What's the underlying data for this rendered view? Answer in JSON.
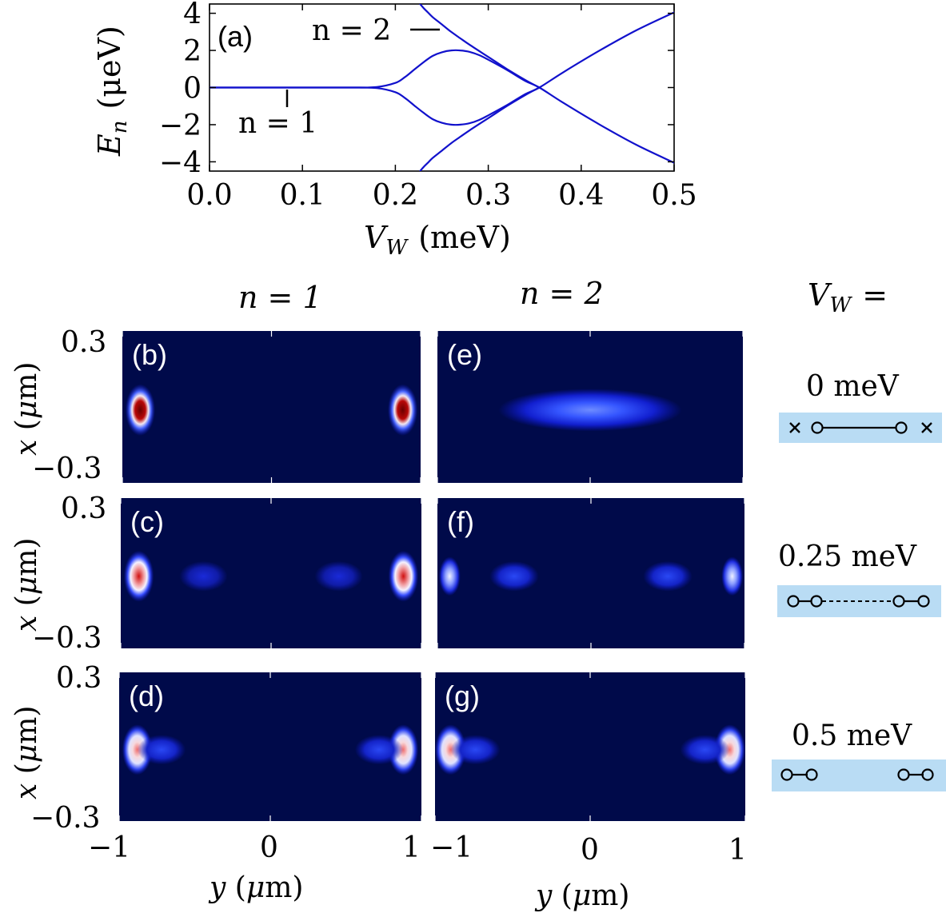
{
  "chart_data": [
    {
      "type": "line",
      "panel_label": "(a)",
      "xlabel_main": "V",
      "xlabel_sub": "W",
      "xlabel_unit": "(meV)",
      "ylabel_main": "E",
      "ylabel_sub": "n",
      "ylabel_unit": "(μeV)",
      "xlim": [
        0.0,
        0.5
      ],
      "ylim": [
        -4.5,
        4.5
      ],
      "xticks": [
        0.0,
        0.1,
        0.2,
        0.3,
        0.4,
        0.5
      ],
      "xtick_labels": [
        "0.0",
        "0.1",
        "0.2",
        "0.3",
        "0.4",
        "0.5"
      ],
      "yticks": [
        4,
        2,
        0,
        -2,
        -4
      ],
      "ytick_labels": [
        "4",
        "2",
        "0",
        "−2",
        "−4"
      ],
      "line_color": "#1111cc",
      "annotations": [
        {
          "text": "n = 2",
          "points_to": [
            0.25,
            3.4
          ]
        },
        {
          "text": "n = 1",
          "points_to": [
            0.085,
            0.0
          ]
        }
      ],
      "series": [
        {
          "name": "n=1 (+)",
          "x": [
            0.0,
            0.05,
            0.1,
            0.15,
            0.18,
            0.2,
            0.21,
            0.22,
            0.23,
            0.24,
            0.25,
            0.26,
            0.27,
            0.28,
            0.29,
            0.3,
            0.32,
            0.34,
            0.355,
            0.38,
            0.42,
            0.46,
            0.5
          ],
          "y": [
            0.0,
            0.0,
            0.0,
            0.0,
            0.03,
            0.25,
            0.55,
            0.95,
            1.35,
            1.7,
            1.9,
            2.0,
            2.0,
            1.92,
            1.75,
            1.5,
            0.95,
            0.35,
            0.0,
            -0.8,
            -2.0,
            -3.1,
            -4.05
          ]
        },
        {
          "name": "n=1 (−)",
          "x": [
            0.0,
            0.05,
            0.1,
            0.15,
            0.18,
            0.2,
            0.21,
            0.22,
            0.23,
            0.24,
            0.25,
            0.26,
            0.27,
            0.28,
            0.29,
            0.3,
            0.32,
            0.34,
            0.355,
            0.38,
            0.42,
            0.46,
            0.5
          ],
          "y": [
            0.0,
            0.0,
            0.0,
            0.0,
            -0.03,
            -0.25,
            -0.55,
            -0.95,
            -1.35,
            -1.7,
            -1.9,
            -2.0,
            -2.0,
            -1.92,
            -1.75,
            -1.5,
            -0.95,
            -0.35,
            0.0,
            0.8,
            2.0,
            3.1,
            4.05
          ]
        },
        {
          "name": "n=2 (+)",
          "x": [
            0.225,
            0.23,
            0.235,
            0.24,
            0.25,
            0.26,
            0.27,
            0.28,
            0.3,
            0.32,
            0.34,
            0.355
          ],
          "y": [
            4.6,
            4.3,
            4.05,
            3.8,
            3.4,
            3.0,
            2.65,
            2.3,
            1.65,
            1.0,
            0.4,
            0.0
          ]
        },
        {
          "name": "n=2 (−)",
          "x": [
            0.225,
            0.23,
            0.235,
            0.24,
            0.25,
            0.26,
            0.27,
            0.28,
            0.3,
            0.32,
            0.34,
            0.355
          ],
          "y": [
            -4.6,
            -4.3,
            -4.05,
            -3.8,
            -3.4,
            -3.0,
            -2.65,
            -2.3,
            -1.65,
            -1.0,
            -0.4,
            0.0
          ]
        }
      ]
    },
    {
      "type": "heatmap",
      "description_free": true,
      "column_titles": [
        "n = 1",
        "n = 2"
      ],
      "row_title": "V",
      "row_title_sub": "W",
      "row_title_suffix": "=",
      "xlabel": "y (μm)",
      "ylabel": "x (μm)",
      "xlim": [
        -1,
        1
      ],
      "ylim": [
        -0.3,
        0.3
      ],
      "xtick_labels": [
        "−1",
        "0",
        "1"
      ],
      "ytick_labels": [
        "0.3",
        "−0.3"
      ],
      "background": "#000a4a",
      "panels": [
        {
          "label": "(b)",
          "n": 1,
          "VW": 0,
          "blobs": [
            {
              "y": -0.88,
              "x": 0.0,
              "peak": 1.0
            },
            {
              "y": 0.88,
              "x": 0.0,
              "peak": 1.0
            }
          ]
        },
        {
          "label": "(c)",
          "n": 1,
          "VW": 0.25,
          "blobs": [
            {
              "y": -0.88,
              "x": 0.0,
              "peak": 0.9
            },
            {
              "y": 0.88,
              "x": 0.0,
              "peak": 0.9
            },
            {
              "y": -0.45,
              "x": 0.0,
              "peak": 0.22
            },
            {
              "y": 0.45,
              "x": 0.0,
              "peak": 0.22
            }
          ]
        },
        {
          "label": "(d)",
          "n": 1,
          "VW": 0.5,
          "blobs": [
            {
              "y": -0.88,
              "x": 0.0,
              "peak": 0.7
            },
            {
              "y": 0.88,
              "x": 0.0,
              "peak": 0.7
            },
            {
              "y": -0.72,
              "x": 0.0,
              "peak": 0.3
            },
            {
              "y": 0.72,
              "x": 0.0,
              "peak": 0.3
            }
          ]
        },
        {
          "label": "(e)",
          "n": 2,
          "VW": 0,
          "blobs": [
            {
              "y": 0.0,
              "x": 0.0,
              "peak": 0.45,
              "wide": true
            }
          ]
        },
        {
          "label": "(f)",
          "n": 2,
          "VW": 0.25,
          "blobs": [
            {
              "y": -0.92,
              "x": 0.0,
              "peak": 0.55
            },
            {
              "y": 0.92,
              "x": 0.0,
              "peak": 0.55
            },
            {
              "y": -0.5,
              "x": 0.0,
              "peak": 0.32
            },
            {
              "y": 0.5,
              "x": 0.0,
              "peak": 0.32
            }
          ]
        },
        {
          "label": "(g)",
          "n": 2,
          "VW": 0.5,
          "blobs": [
            {
              "y": -0.9,
              "x": 0.0,
              "peak": 0.7
            },
            {
              "y": 0.9,
              "x": 0.0,
              "peak": 0.7
            },
            {
              "y": -0.74,
              "x": 0.0,
              "peak": 0.3
            },
            {
              "y": 0.74,
              "x": 0.0,
              "peak": 0.3
            }
          ]
        }
      ]
    }
  ],
  "legend": {
    "box_color": "#b9dcf4",
    "rows": [
      {
        "label": "0 meV",
        "style": "solid"
      },
      {
        "label": "0.25 meV",
        "style": "dashed"
      },
      {
        "label": "0.5 meV",
        "style": "separated"
      }
    ]
  }
}
